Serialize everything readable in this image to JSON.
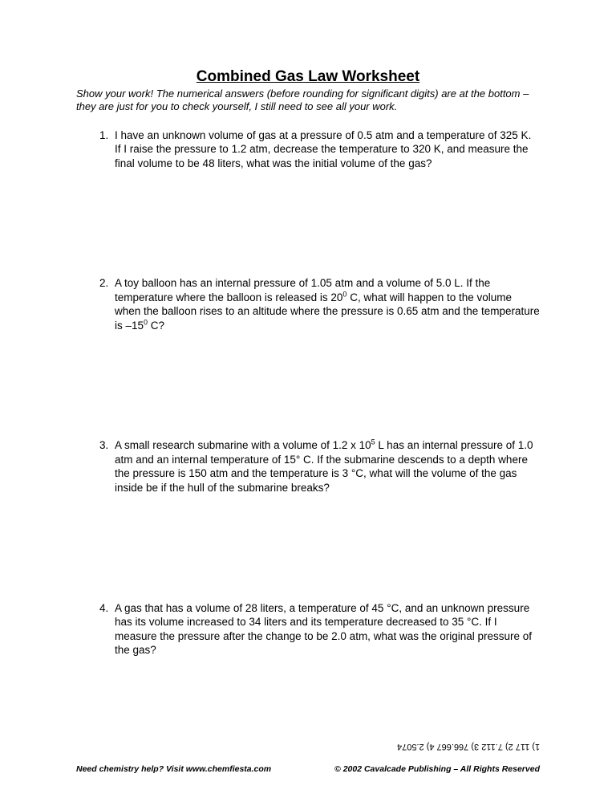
{
  "title": "Combined Gas Law Worksheet",
  "instructions": "Show your work!  The numerical answers (before rounding for significant digits) are at the bottom – they are just for you to check yourself, I still need to see all your work.",
  "problems": {
    "q1": "I have an unknown volume of gas at a pressure of 0.5 atm and a temperature of 325 K.  If I raise the pressure to 1.2 atm, decrease the temperature to 320 K, and measure the final volume to be 48 liters, what was the initial volume of the gas?",
    "q2_a": "A toy balloon has an internal pressure of 1.05 atm and a volume of 5.0 L.  If the temperature where the balloon is released is 20",
    "q2_b": " C, what will happen to the volume when the balloon rises to an altitude where the pressure is 0.65 atm and the temperature is –15",
    "q2_c": " C?",
    "q3_a": "A small research submarine with a volume of 1.2 x 10",
    "q3_b": " L has an internal pressure of 1.0 atm and an internal temperature of 15° C.  If the submarine descends to a depth where the pressure is 150 atm and the temperature is 3 °C, what will the volume of the gas inside be if the hull of the submarine breaks?",
    "q4": "A gas that has a volume of 28 liters, a temperature of 45 °C, and an unknown pressure has its volume increased to 34 liters and its temperature decreased to 35 °C.  If I measure the pressure after the change to be 2.0 atm, what was the original pressure of the gas?"
  },
  "superscripts": {
    "zero": "0",
    "five": "5"
  },
  "answers": "1) 117    2) 7.112    3) 766.667    4) 2.5074",
  "footer": {
    "left": "Need chemistry help?  Visit www.chemfiesta.com",
    "right": "© 2002 Cavalcade Publishing – All Rights Reserved"
  },
  "style": {
    "background_color": "#ffffff",
    "text_color": "#000000",
    "title_fontsize": 19,
    "body_fontsize": 13.5,
    "instructions_fontsize": 13,
    "footer_fontsize": 10.5,
    "answers_fontsize": 11,
    "font_family": "Arial"
  }
}
